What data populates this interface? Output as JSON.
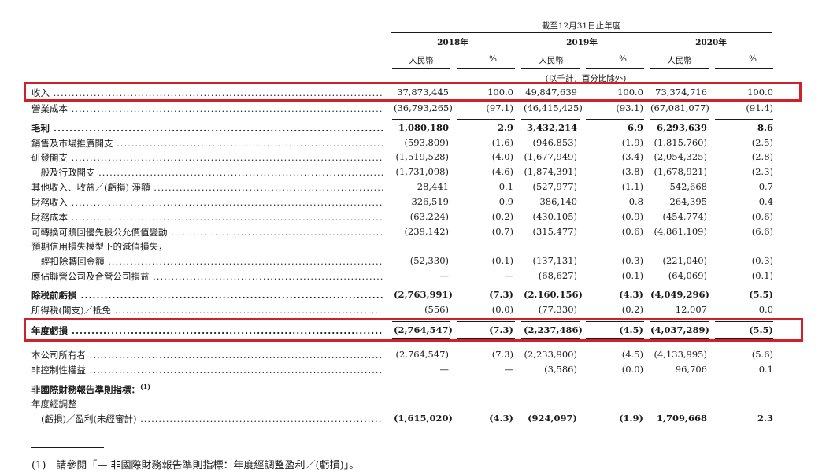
{
  "header": {
    "title": "截至12月31日止年度",
    "years": [
      "2018年",
      "2019年",
      "2020年"
    ],
    "rmb": "人民幣",
    "pct": "%",
    "unit_note": "(以千計，百分比除外)"
  },
  "rows": [
    {
      "label": "收入",
      "vals": [
        "37,873,445",
        "100.0",
        "49,847,639",
        "100.0",
        "73,374,716",
        "100.0"
      ]
    },
    {
      "label": "營業成本",
      "vals": [
        "(36,793,265)",
        "(97.1)",
        "(46,415,425)",
        "(93.1)",
        "(67,081,077)",
        "(91.4)"
      ]
    },
    {
      "label": "毛利",
      "bold": true,
      "vals": [
        "1,080,180",
        "2.9",
        "3,432,214",
        "6.9",
        "6,293,639",
        "8.6"
      ]
    },
    {
      "label": "銷售及市場推廣開支",
      "vals": [
        "(593,809)",
        "(1.6)",
        "(946,853)",
        "(1.9)",
        "(1,815,760)",
        "(2.5)"
      ]
    },
    {
      "label": "研發開支",
      "vals": [
        "(1,519,528)",
        "(4.0)",
        "(1,677,949)",
        "(3.4)",
        "(2,054,325)",
        "(2.8)"
      ]
    },
    {
      "label": "一般及行政開支",
      "vals": [
        "(1,731,098)",
        "(4.6)",
        "(1,874,391)",
        "(3.8)",
        "(1,678,921)",
        "(2.3)"
      ]
    },
    {
      "label": "其他收入、收益／(虧損) 淨額",
      "vals": [
        "28,441",
        "0.1",
        "(527,977)",
        "(1.1)",
        "542,668",
        "0.7"
      ]
    },
    {
      "label": "財務收入",
      "vals": [
        "326,519",
        "0.9",
        "386,140",
        "0.8",
        "264,395",
        "0.4"
      ]
    },
    {
      "label": "財務成本",
      "vals": [
        "(63,224)",
        "(0.2)",
        "(430,105)",
        "(0.9)",
        "(454,774)",
        "(0.6)"
      ]
    },
    {
      "label": "可轉換可贖回優先股公允價值變動",
      "vals": [
        "(239,142)",
        "(0.7)",
        "(315,477)",
        "(0.6)",
        "(4,861,109)",
        "(6.6)"
      ]
    },
    {
      "label": "預期信用損失模型下的減值損失，",
      "nodot": true,
      "vals": [
        "",
        "",
        "",
        "",
        "",
        ""
      ]
    },
    {
      "label": "經扣除轉回金額",
      "indent": true,
      "vals": [
        "(52,330)",
        "(0.1)",
        "(137,131)",
        "(0.3)",
        "(221,040)",
        "(0.3)"
      ]
    },
    {
      "label": "應佔聯營公司及合營公司損益",
      "vals": [
        "—",
        "—",
        "(68,627)",
        "(0.1)",
        "(64,069)",
        "(0.1)"
      ]
    },
    {
      "label": "除税前虧損",
      "bold": true,
      "vals": [
        "(2,763,991)",
        "(7.3)",
        "(2,160,156)",
        "(4.3)",
        "(4,049,296)",
        "(5.5)"
      ]
    },
    {
      "label": "所得税(開支)／抵免",
      "vals": [
        "(556)",
        "(0.0)",
        "(77,330)",
        "(0.2)",
        "12,007",
        "0.0"
      ]
    },
    {
      "label": "年度虧損",
      "bold": true,
      "vals": [
        "(2,764,547)",
        "(7.3)",
        "(2,237,486)",
        "(4.5)",
        "(4,037,289)",
        "(5.5)"
      ]
    },
    {
      "label": "本公司所有者",
      "vals": [
        "(2,764,547)",
        "(7.3)",
        "(2,233,900)",
        "(4.5)",
        "(4,133,995)",
        "(5.6)"
      ]
    },
    {
      "label": "非控制性權益",
      "vals": [
        "—",
        "—",
        "(3,586)",
        "(0.0)",
        "96,706",
        "0.1"
      ]
    },
    {
      "label": "非國際財務報告準則指標：",
      "bold": true,
      "nodot": true,
      "note_mark": "(1)",
      "vals": [
        "",
        "",
        "",
        "",
        "",
        ""
      ]
    },
    {
      "label": "年度經調整",
      "nodot": true,
      "vals": [
        "",
        "",
        "",
        "",
        "",
        ""
      ]
    },
    {
      "label": "(虧損)／盈利(未經審計)",
      "indent": true,
      "bold_vals": true,
      "vals": [
        "(1,615,020)",
        "(4.3)",
        "(924,097)",
        "(1.9)",
        "1,709,668",
        "2.3"
      ]
    }
  ],
  "footnote": "(1)　請參閱「— 非國際財務報告準則指標：年度經調整盈利／(虧損)」。",
  "colors": {
    "highlight": "#d0202a",
    "text": "#1a1a1a"
  }
}
